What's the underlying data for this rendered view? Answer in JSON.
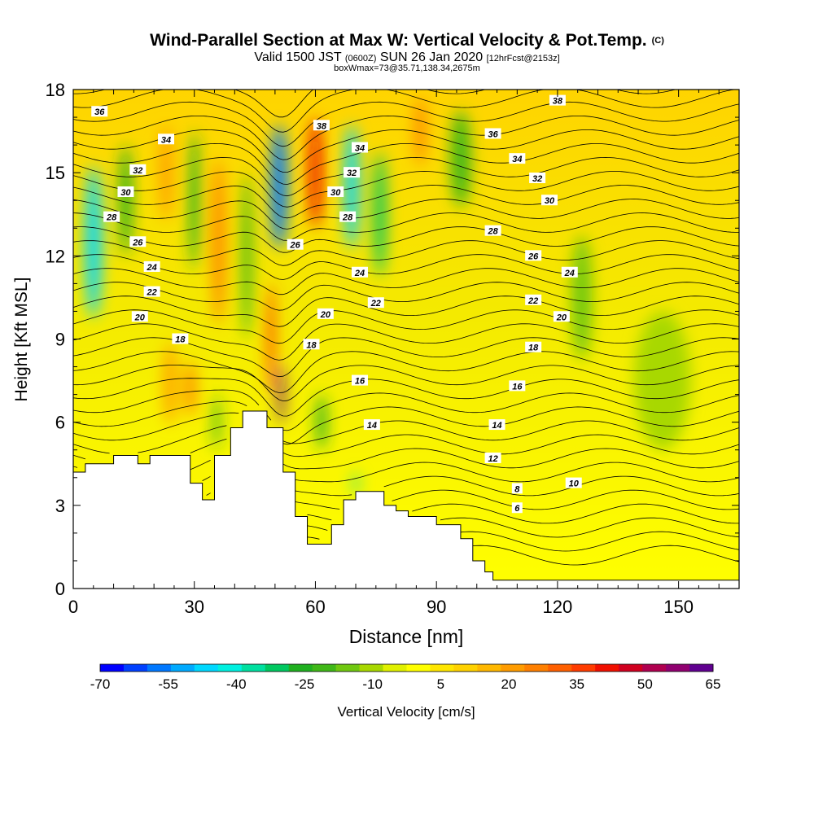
{
  "header": {
    "title": "Wind-Parallel Section at Max W: Vertical Velocity & Pot.Temp.",
    "title_mark": "(C)",
    "valid_prefix": "Valid 1500 JST",
    "valid_utc": "(0600Z)",
    "valid_date": "SUN 26 Jan 2020",
    "forecast": "[12hrFcst@2153z]",
    "boxinfo": "boxWmax=73@35.71,138.34,2675m"
  },
  "chart_data": {
    "type": "heatmap",
    "xlabel": "Distance [nm]",
    "ylabel": "Height [Kft MSL]",
    "xlim": [
      0,
      165
    ],
    "ylim": [
      0,
      18
    ],
    "xticks": [
      "0",
      "30",
      "60",
      "90",
      "120",
      "150"
    ],
    "yticks": [
      "0",
      "3",
      "6",
      "9",
      "12",
      "15",
      "18"
    ],
    "xtick_values": [
      0,
      30,
      60,
      90,
      120,
      150
    ],
    "ytick_values": [
      0,
      3,
      6,
      9,
      12,
      15,
      18
    ],
    "colorbar": {
      "label": "Vertical Velocity [cm/s]",
      "tick_labels": [
        "-70",
        "-55",
        "-40",
        "-25",
        "-10",
        "5",
        "20",
        "35",
        "50",
        "65"
      ],
      "tick_values": [
        -70,
        -55,
        -40,
        -25,
        -10,
        5,
        20,
        35,
        50,
        65
      ],
      "colors": [
        "#0000ff",
        "#0040ff",
        "#0078ff",
        "#00aaff",
        "#00d8ff",
        "#00f0e0",
        "#00e0a0",
        "#00c860",
        "#20b020",
        "#40b818",
        "#70c810",
        "#a8d800",
        "#e0f000",
        "#ffff00",
        "#ffe600",
        "#ffd200",
        "#ffb800",
        "#ff9c00",
        "#ff8000",
        "#ff6000",
        "#ff3c00",
        "#f01000",
        "#d00020",
        "#b00050",
        "#900070",
        "#600090"
      ]
    },
    "terrain_kft": [
      [
        0,
        4.2
      ],
      [
        3,
        4.2
      ],
      [
        3,
        4.5
      ],
      [
        10,
        4.5
      ],
      [
        10,
        4.8
      ],
      [
        16,
        4.8
      ],
      [
        16,
        4.5
      ],
      [
        19,
        4.5
      ],
      [
        19,
        4.8
      ],
      [
        29,
        4.8
      ],
      [
        29,
        3.8
      ],
      [
        32,
        3.8
      ],
      [
        32,
        3.2
      ],
      [
        35,
        3.2
      ],
      [
        35,
        4.8
      ],
      [
        39,
        4.8
      ],
      [
        39,
        5.8
      ],
      [
        42,
        5.8
      ],
      [
        42,
        6.4
      ],
      [
        48,
        6.4
      ],
      [
        48,
        5.8
      ],
      [
        52,
        5.8
      ],
      [
        52,
        4.2
      ],
      [
        55,
        4.2
      ],
      [
        55,
        2.6
      ],
      [
        58,
        2.6
      ],
      [
        58,
        1.6
      ],
      [
        64,
        1.6
      ],
      [
        64,
        2.3
      ],
      [
        67,
        2.3
      ],
      [
        67,
        3.2
      ],
      [
        70,
        3.2
      ],
      [
        70,
        3.5
      ],
      [
        77,
        3.5
      ],
      [
        77,
        3.0
      ],
      [
        80,
        3.0
      ],
      [
        80,
        2.8
      ],
      [
        83,
        2.8
      ],
      [
        83,
        2.6
      ],
      [
        90,
        2.6
      ],
      [
        90,
        2.3
      ],
      [
        96,
        2.3
      ],
      [
        96,
        1.8
      ],
      [
        99,
        1.8
      ],
      [
        99,
        1.0
      ],
      [
        102,
        1.0
      ],
      [
        102,
        0.6
      ],
      [
        104,
        0.6
      ],
      [
        104,
        0.3
      ],
      [
        165,
        0.3
      ]
    ],
    "potential_temperature_labels": [
      {
        "text": "36",
        "x": 6.5,
        "y": 17.2
      },
      {
        "text": "38",
        "x": 61.5,
        "y": 16.7
      },
      {
        "text": "36",
        "x": 104,
        "y": 16.4
      },
      {
        "text": "38",
        "x": 120,
        "y": 17.6
      },
      {
        "text": "34",
        "x": 23,
        "y": 16.2
      },
      {
        "text": "34",
        "x": 71,
        "y": 15.9
      },
      {
        "text": "34",
        "x": 110,
        "y": 15.5
      },
      {
        "text": "32",
        "x": 16,
        "y": 15.1
      },
      {
        "text": "32",
        "x": 69,
        "y": 15.0
      },
      {
        "text": "32",
        "x": 115,
        "y": 14.8
      },
      {
        "text": "30",
        "x": 13,
        "y": 14.3
      },
      {
        "text": "30",
        "x": 65,
        "y": 14.3
      },
      {
        "text": "30",
        "x": 118,
        "y": 14.0
      },
      {
        "text": "28",
        "x": 9.5,
        "y": 13.4
      },
      {
        "text": "28",
        "x": 68,
        "y": 13.4
      },
      {
        "text": "28",
        "x": 104,
        "y": 12.9
      },
      {
        "text": "26",
        "x": 16,
        "y": 12.5
      },
      {
        "text": "26",
        "x": 55,
        "y": 12.4
      },
      {
        "text": "26",
        "x": 114,
        "y": 12.0
      },
      {
        "text": "24",
        "x": 19.5,
        "y": 11.6
      },
      {
        "text": "24",
        "x": 71,
        "y": 11.4
      },
      {
        "text": "24",
        "x": 123,
        "y": 11.4
      },
      {
        "text": "22",
        "x": 19.5,
        "y": 10.7
      },
      {
        "text": "22",
        "x": 75,
        "y": 10.3
      },
      {
        "text": "22",
        "x": 114,
        "y": 10.4
      },
      {
        "text": "20",
        "x": 16.5,
        "y": 9.8
      },
      {
        "text": "20",
        "x": 62.5,
        "y": 9.9
      },
      {
        "text": "20",
        "x": 121,
        "y": 9.8
      },
      {
        "text": "18",
        "x": 26.5,
        "y": 9.0
      },
      {
        "text": "18",
        "x": 59,
        "y": 8.8
      },
      {
        "text": "18",
        "x": 114,
        "y": 8.7
      },
      {
        "text": "16",
        "x": 71,
        "y": 7.5
      },
      {
        "text": "16",
        "x": 110,
        "y": 7.3
      },
      {
        "text": "14",
        "x": 74,
        "y": 5.9
      },
      {
        "text": "14",
        "x": 105,
        "y": 5.9
      },
      {
        "text": "12",
        "x": 104,
        "y": 4.7
      },
      {
        "text": "10",
        "x": 124,
        "y": 3.8
      },
      {
        "text": "8",
        "x": 110,
        "y": 3.6
      },
      {
        "text": "6",
        "x": 110,
        "y": 2.9
      }
    ],
    "vertical_velocity_features": [
      {
        "x": 5,
        "y": 12.5,
        "w": 4,
        "h": 5.5,
        "value": -45
      },
      {
        "x": 13,
        "y": 14,
        "w": 3,
        "h": 4,
        "value": -25
      },
      {
        "x": 23,
        "y": 15,
        "w": 3,
        "h": 3.5,
        "value": 20
      },
      {
        "x": 30,
        "y": 14,
        "w": 2.5,
        "h": 5,
        "value": -25
      },
      {
        "x": 36,
        "y": 12.5,
        "w": 3,
        "h": 6,
        "value": 25
      },
      {
        "x": 43,
        "y": 12,
        "w": 2.5,
        "h": 6,
        "value": -20
      },
      {
        "x": 51,
        "y": 14.5,
        "w": 4,
        "h": 4.5,
        "value": -55
      },
      {
        "x": 49,
        "y": 9,
        "w": 1.8,
        "h": 4,
        "value": 35
      },
      {
        "x": 51.5,
        "y": 7,
        "w": 1.5,
        "h": 2.2,
        "value": 60
      },
      {
        "x": 60,
        "y": 15,
        "w": 3,
        "h": 4,
        "value": 40
      },
      {
        "x": 69,
        "y": 14.5,
        "w": 3.5,
        "h": 4.5,
        "value": -45
      },
      {
        "x": 76,
        "y": 13.5,
        "w": 3,
        "h": 4.5,
        "value": -30
      },
      {
        "x": 86,
        "y": 16.5,
        "w": 2.5,
        "h": 2.5,
        "value": 25
      },
      {
        "x": 96,
        "y": 15.5,
        "w": 5,
        "h": 3.5,
        "value": -20
      },
      {
        "x": 126,
        "y": 10.5,
        "w": 5,
        "h": 4.5,
        "value": -15
      },
      {
        "x": 24,
        "y": 7.4,
        "w": 3,
        "h": 3,
        "value": 20
      },
      {
        "x": 29,
        "y": 7.2,
        "w": 2.5,
        "h": 2,
        "value": 25
      },
      {
        "x": 35.5,
        "y": 6,
        "w": 1.6,
        "h": 2,
        "value": -25
      },
      {
        "x": 61.5,
        "y": 6,
        "w": 2.5,
        "h": 2,
        "value": -25
      },
      {
        "x": 70,
        "y": 3.8,
        "w": 1.2,
        "h": 0.8,
        "value": -35
      },
      {
        "x": 146,
        "y": 7.5,
        "w": 14,
        "h": 5,
        "value": -10
      }
    ]
  }
}
